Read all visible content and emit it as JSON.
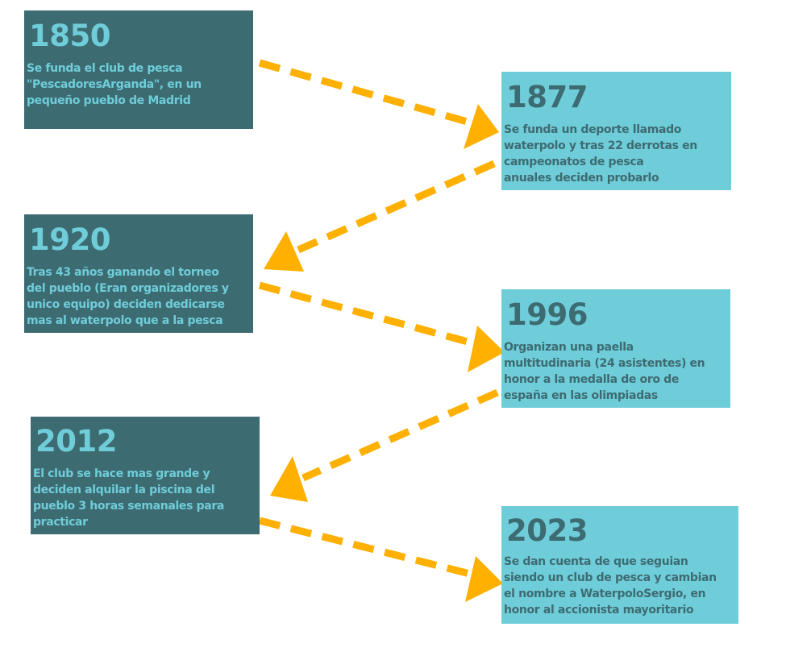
{
  "colors": {
    "dark_card": "#3d6b72",
    "light_card": "#6fcdd9",
    "arrow": "#ffb000"
  },
  "timeline": [
    {
      "year": "1850",
      "lines": [
        "Se funda el club de pesca",
        "\"PescadoresArganda\", en un",
        "pequeño pueblo de Madrid"
      ]
    },
    {
      "year": "1877",
      "lines": [
        "Se funda un deporte llamado",
        "waterpolo y tras 22 derrotas en",
        "campeonatos de pesca",
        "anuales deciden probarlo"
      ]
    },
    {
      "year": "1920",
      "lines": [
        "Tras 43 años ganando el torneo",
        "del pueblo (Eran organizadores y",
        "unico  equipo) deciden  dedicarse",
        "mas  al waterpolo que a la pesca"
      ]
    },
    {
      "year": "1996",
      "lines": [
        "Organizan una paella",
        "multitudinaria (24 asistentes) en",
        "honor a la medalla de oro de",
        "españa en las olimpiadas"
      ]
    },
    {
      "year": "2012",
      "lines": [
        "El club se hace mas grande y",
        "deciden alquilar la piscina del",
        "pueblo 3 horas semanales para",
        "practicar"
      ]
    },
    {
      "year": "2023",
      "lines": [
        "Se dan cuenta de que seguian",
        "siendo un club de pesca y cambian",
        "el nombre a WaterpoloSergio, en",
        "honor al accionista mayoritario"
      ]
    }
  ]
}
